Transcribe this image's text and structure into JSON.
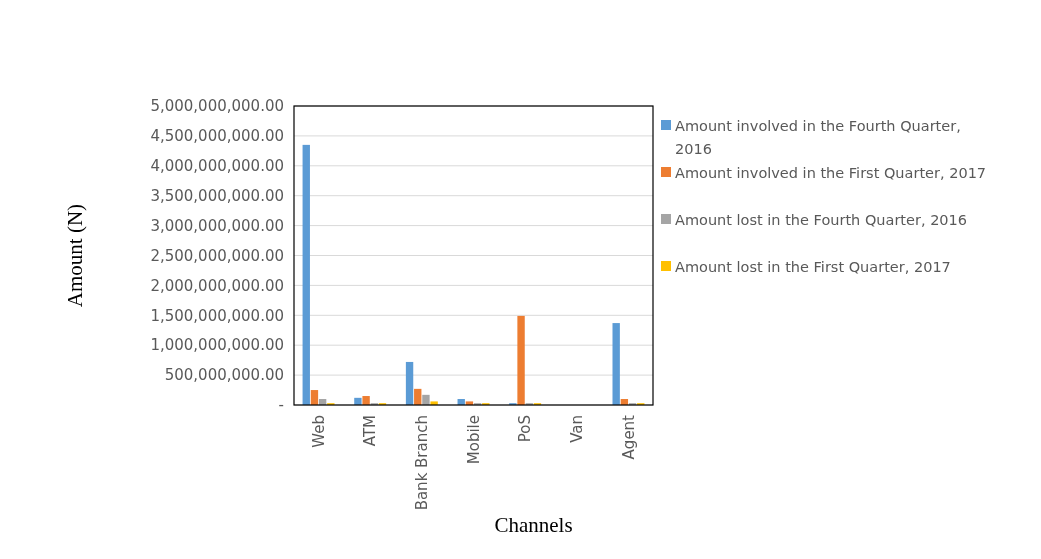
{
  "chart_data": {
    "type": "bar",
    "xlabel": "Channels",
    "ylabel": "Amount (N)",
    "categories": [
      "Web",
      "ATM",
      "Bank Branch",
      "Mobile",
      "PoS",
      "Van",
      "Agent"
    ],
    "series": [
      {
        "name": "Amount involved in the Fourth Quarter, 2016",
        "color": "#5b9bd5",
        "values": [
          4350000000,
          120000000,
          720000000,
          100000000,
          30000000,
          0,
          1370000000
        ]
      },
      {
        "name": "Amount involved in the First Quarter, 2017",
        "color": "#ed7d31",
        "values": [
          250000000,
          150000000,
          270000000,
          60000000,
          1490000000,
          0,
          100000000
        ]
      },
      {
        "name": "Amount lost in the Fourth Quarter, 2016",
        "color": "#a5a5a5",
        "values": [
          100000000,
          30000000,
          170000000,
          30000000,
          30000000,
          0,
          30000000
        ]
      },
      {
        "name": "Amount lost in the First Quarter, 2017",
        "color": "#ffc000",
        "values": [
          30000000,
          30000000,
          60000000,
          30000000,
          30000000,
          0,
          30000000
        ]
      }
    ],
    "ylim": [
      0,
      5000000000
    ],
    "yticks": [
      {
        "value": 0,
        "label": "-"
      },
      {
        "value": 500000000,
        "label": "500,000,000.00"
      },
      {
        "value": 1000000000,
        "label": "1,000,000,000.00"
      },
      {
        "value": 1500000000,
        "label": "1,500,000,000.00"
      },
      {
        "value": 2000000000,
        "label": "2,000,000,000.00"
      },
      {
        "value": 2500000000,
        "label": "2,500,000,000.00"
      },
      {
        "value": 3000000000,
        "label": "3,000,000,000.00"
      },
      {
        "value": 3500000000,
        "label": "3,500,000,000.00"
      },
      {
        "value": 4000000000,
        "label": "4,000,000,000.00"
      },
      {
        "value": 4500000000,
        "label": "4,500,000,000.00"
      },
      {
        "value": 5000000000,
        "label": "5,000,000,000.00"
      }
    ],
    "grid": "y",
    "legend": "right"
  }
}
